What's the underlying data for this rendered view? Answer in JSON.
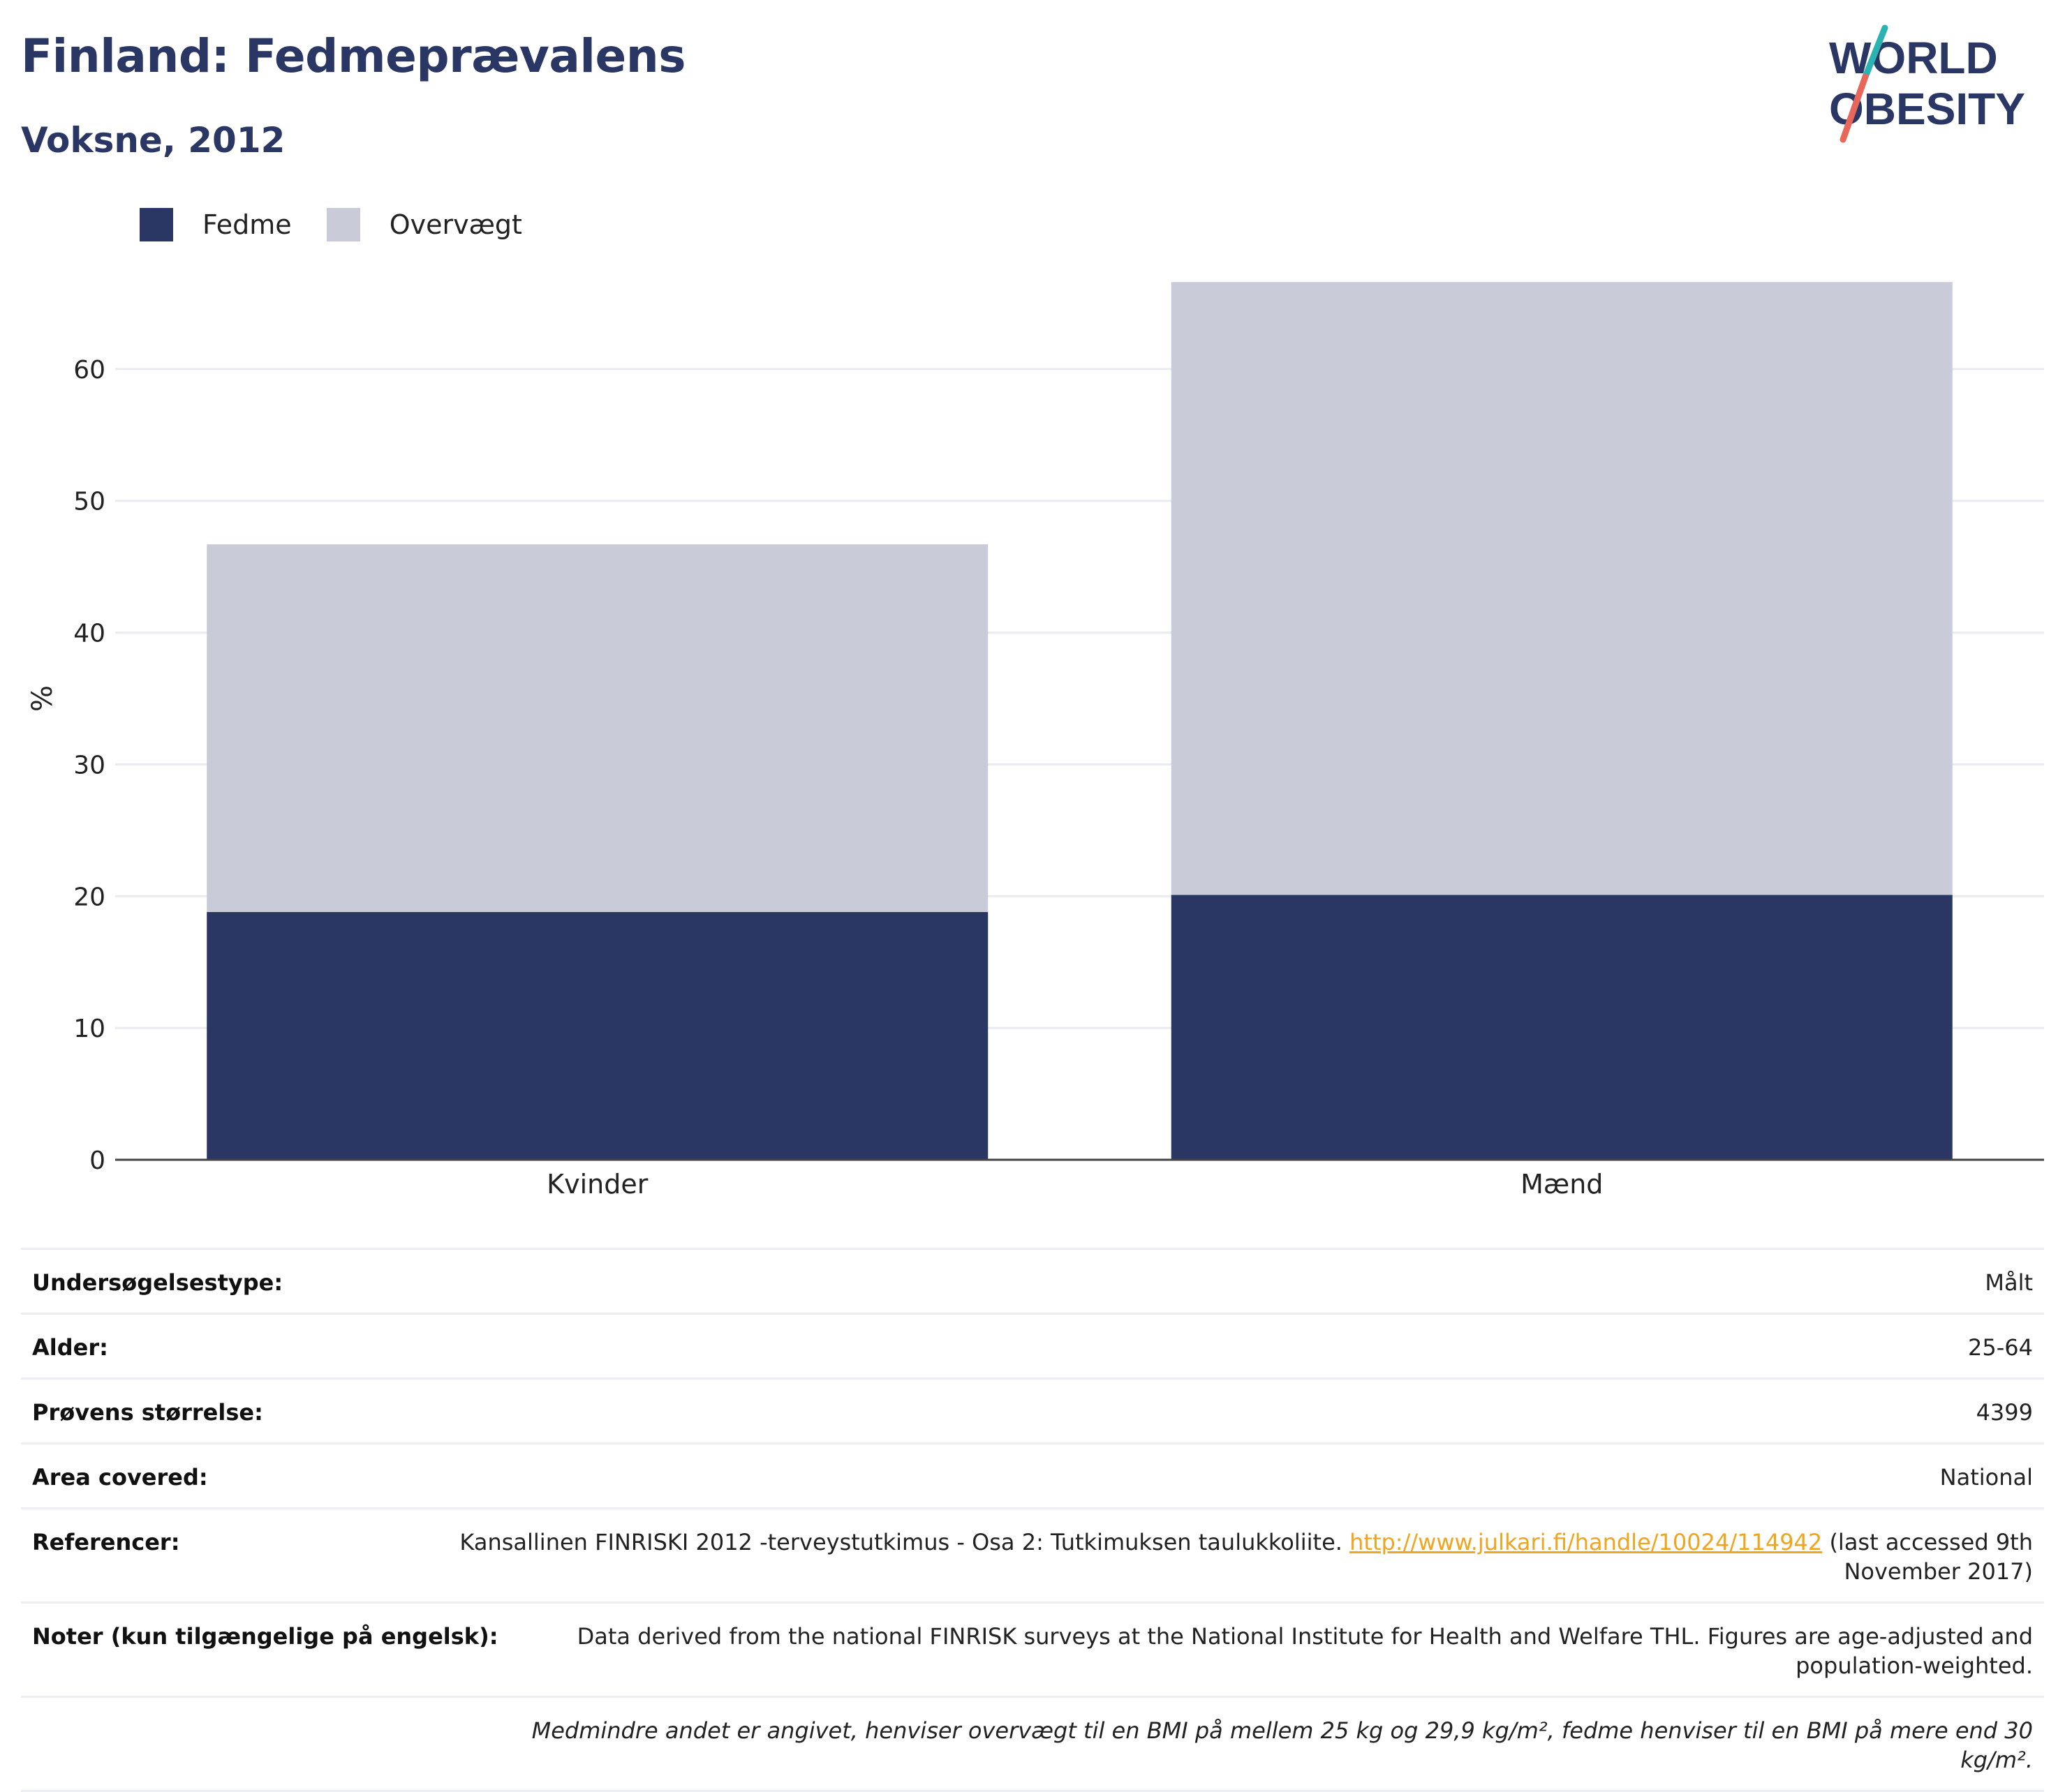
{
  "header": {
    "title": "Finland: Fedmeprævalens",
    "subtitle": "Voksne, 2012"
  },
  "logo": {
    "line1": "WORLD",
    "line2": "OBESITY"
  },
  "legend": [
    {
      "label": "Fedme",
      "color": "#2a3663"
    },
    {
      "label": "Overvægt",
      "color": "#c9ccd8"
    }
  ],
  "chart_data": {
    "type": "bar",
    "stacked": true,
    "categories": [
      "Kvinder",
      "Mænd"
    ],
    "series": [
      {
        "name": "Fedme",
        "color": "#2a3663",
        "values": [
          18.8,
          20.1
        ]
      },
      {
        "name": "Overvægt",
        "color": "#c9ccd8",
        "values": [
          27.9,
          46.5
        ]
      }
    ],
    "ylabel": "%",
    "ylim": [
      0,
      70
    ],
    "yticks": [
      0,
      10,
      20,
      30,
      40,
      50,
      60
    ],
    "grid": true,
    "legend_position": "top-left"
  },
  "info": {
    "rows": [
      {
        "label": "Undersøgelsestype:",
        "value": "Målt"
      },
      {
        "label": "Alder:",
        "value": "25-64"
      },
      {
        "label": "Prøvens størrelse:",
        "value": "4399"
      },
      {
        "label": "Area covered:",
        "value": "National"
      }
    ],
    "references": {
      "label": "Referencer:",
      "text": "Kansallinen FINRISKI 2012 -terveystutkimus - Osa 2: Tutkimuksen taulukkoliite. ",
      "link": "http://www.julkari.fi/handle/10024/114942",
      "after": " (last accessed 9th November 2017)"
    },
    "notes": {
      "label": "Noter (kun tilgængelige på engelsk):",
      "value": "Data derived from the national FINRISK surveys at the National Institute for Health and Welfare THL. Figures are age-adjusted and population-weighted."
    },
    "footnote": "Medmindre andet er angivet, henviser overvægt til en BMI på mellem 25 kg og 29,9 kg/m², fedme henviser til en BMI på mere end 30 kg/m²."
  }
}
